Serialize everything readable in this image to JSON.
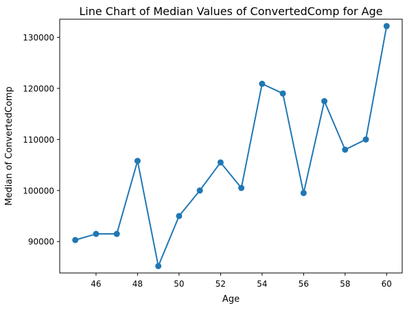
{
  "chart_data": {
    "type": "line",
    "title": "Line Chart of Median Values of ConvertedComp for Age",
    "xlabel": "Age",
    "ylabel": "Median of ConvertedComp",
    "x": [
      45,
      46,
      47,
      48,
      49,
      50,
      51,
      52,
      53,
      54,
      55,
      56,
      57,
      58,
      59,
      60
    ],
    "y": [
      90300,
      91500,
      91500,
      105800,
      85200,
      95000,
      100000,
      105500,
      100500,
      120900,
      119000,
      99500,
      117500,
      108000,
      110000,
      132200
    ],
    "xlim": [
      44.25,
      60.75
    ],
    "ylim": [
      83850,
      133550
    ],
    "xticks": [
      46,
      48,
      50,
      52,
      54,
      56,
      58,
      60
    ],
    "yticks": [
      90000,
      100000,
      110000,
      120000,
      130000
    ],
    "xtick_labels": [
      "46",
      "48",
      "50",
      "52",
      "54",
      "56",
      "58",
      "60"
    ],
    "ytick_labels": [
      "90000",
      "100000",
      "110000",
      "120000",
      "130000"
    ],
    "line_color": "#1f77b4",
    "marker": "circle",
    "grid": false
  }
}
